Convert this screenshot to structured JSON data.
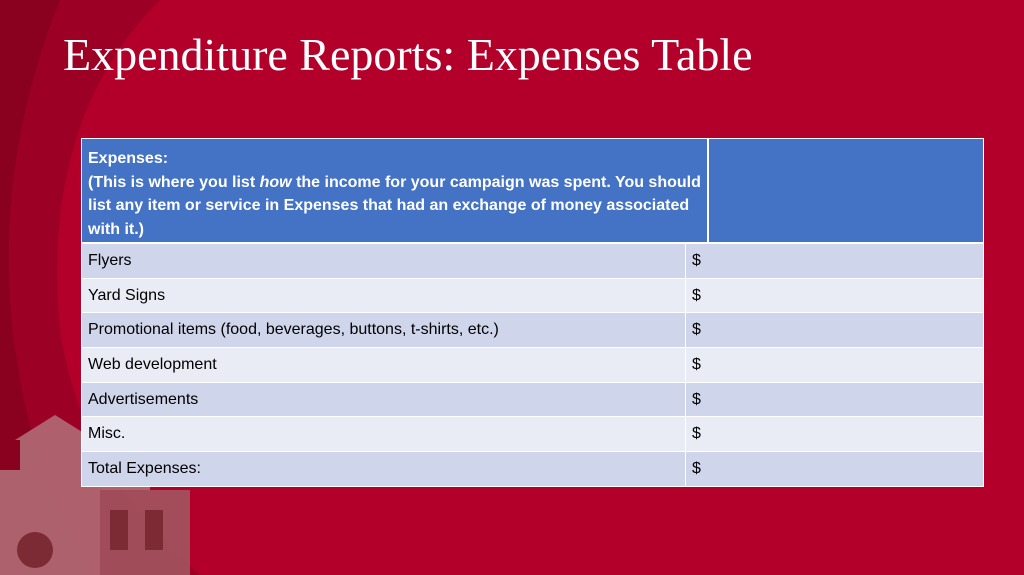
{
  "title": "Expenditure Reports: Expenses Table",
  "table": {
    "header": {
      "label": "Expenses:",
      "description_start": "(This is where you list",
      "description_emphasis": "how",
      "description_end": "the income for your campaign was spent. You should list any item or service in Expenses that had an exchange of money associated with it.)"
    },
    "rows": [
      [
        "Flyers",
        "$"
      ],
      [
        "Yard Signs",
        "$"
      ],
      [
        "Promotional items (food, beverages, buttons, t-shirts, etc.)",
        "$"
      ],
      [
        "Web development",
        "$"
      ],
      [
        "Advertisements",
        "$"
      ],
      [
        "Misc.",
        "$"
      ],
      [
        "Total Expenses:",
        "$"
      ]
    ]
  }
}
